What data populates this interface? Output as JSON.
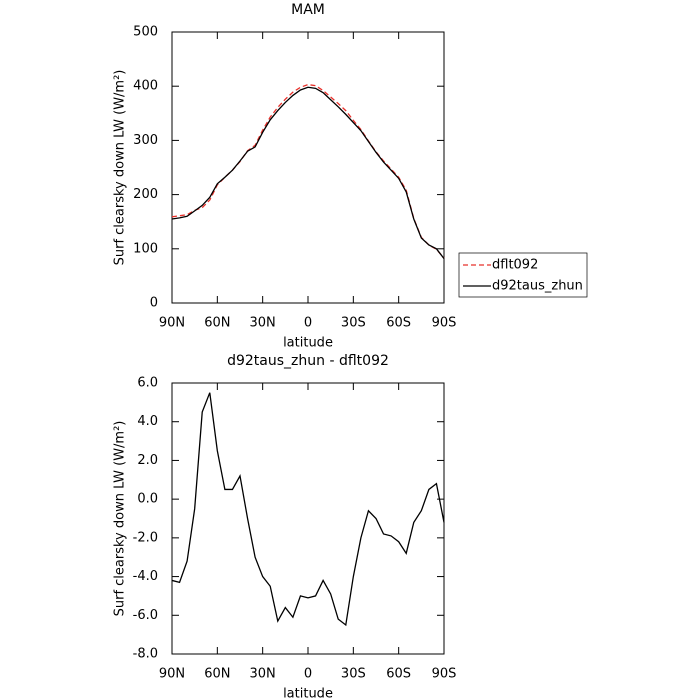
{
  "chart_data": [
    {
      "type": "line",
      "title": "MAM",
      "x_label": "latitude",
      "y_label": "Surf clearsky down LW (W/m²)",
      "x": [
        90,
        85,
        80,
        75,
        70,
        65,
        60,
        55,
        50,
        45,
        40,
        35,
        30,
        25,
        20,
        15,
        10,
        5,
        0,
        -5,
        -10,
        -15,
        -20,
        -25,
        -30,
        -35,
        -40,
        -45,
        -50,
        -55,
        -60,
        -65,
        -70,
        -75,
        -80,
        -85,
        -90
      ],
      "xlim": [
        90,
        -90
      ],
      "xticks": [
        {
          "value": 90,
          "label": "90N"
        },
        {
          "value": 60,
          "label": "60N"
        },
        {
          "value": 30,
          "label": "30N"
        },
        0,
        {
          "value": -30,
          "label": "30S"
        },
        {
          "value": -60,
          "label": "60S"
        },
        {
          "value": -90,
          "label": "90S"
        }
      ],
      "ylim": [
        0,
        500
      ],
      "yticks": [
        0,
        100,
        200,
        300,
        400,
        500
      ],
      "legend": "right",
      "series": [
        {
          "name": "dflt092",
          "color": "#e8302a",
          "dash": true,
          "values": [
            159,
            161,
            163,
            171,
            176,
            190,
            218,
            232,
            245,
            261,
            281,
            291,
            319,
            343,
            361,
            376,
            389,
            398,
            403,
            401,
            392,
            380,
            368,
            355,
            337,
            320,
            299,
            279,
            262,
            247,
            232,
            208,
            156,
            121,
            107,
            99,
            83
          ]
        },
        {
          "name": "d92taus_zhun",
          "color": "#000000",
          "dash": false,
          "values": [
            155,
            157,
            160,
            170,
            180,
            195,
            220,
            232,
            245,
            262,
            280,
            288,
            315,
            338,
            355,
            370,
            383,
            393,
            398,
            396,
            388,
            375,
            362,
            348,
            333,
            318,
            298,
            278,
            260,
            245,
            230,
            205,
            155,
            120,
            107,
            100,
            82
          ]
        }
      ]
    },
    {
      "type": "line",
      "title": "d92taus_zhun - dflt092",
      "x_label": "latitude",
      "y_label": "Surf clearsky down LW (W/m²)",
      "x": [
        90,
        85,
        80,
        75,
        70,
        65,
        60,
        55,
        50,
        45,
        40,
        35,
        30,
        25,
        20,
        15,
        10,
        5,
        0,
        -5,
        -10,
        -15,
        -20,
        -25,
        -30,
        -35,
        -40,
        -45,
        -50,
        -55,
        -60,
        -65,
        -70,
        -75,
        -80,
        -85,
        -90
      ],
      "xlim": [
        90,
        -90
      ],
      "xticks": [
        {
          "value": 90,
          "label": "90N"
        },
        {
          "value": 60,
          "label": "60N"
        },
        {
          "value": 30,
          "label": "30N"
        },
        0,
        {
          "value": -30,
          "label": "30S"
        },
        {
          "value": -60,
          "label": "60S"
        },
        {
          "value": -90,
          "label": "90S"
        }
      ],
      "ylim": [
        -8,
        6
      ],
      "yticks": [
        {
          "value": -8,
          "label": "-8.0"
        },
        {
          "value": -6,
          "label": "-6.0"
        },
        {
          "value": -4,
          "label": "-4.0"
        },
        {
          "value": -2,
          "label": "-2.0"
        },
        {
          "value": 0,
          "label": "0.0"
        },
        {
          "value": 2,
          "label": "2.0"
        },
        {
          "value": 4,
          "label": "4.0"
        },
        {
          "value": 6,
          "label": "6.0"
        }
      ],
      "series": [
        {
          "color": "#000000",
          "dash": false,
          "values": [
            -4.2,
            -4.3,
            -3.2,
            -0.5,
            4.5,
            5.5,
            2.5,
            0.5,
            0.5,
            1.2,
            -1.0,
            -3.0,
            -4.0,
            -4.5,
            -6.3,
            -5.6,
            -6.1,
            -5.0,
            -5.1,
            -5.0,
            -4.2,
            -4.9,
            -6.2,
            -6.5,
            -4.0,
            -2.0,
            -0.6,
            -1.0,
            -1.8,
            -1.9,
            -2.2,
            -2.8,
            -1.2,
            -0.6,
            0.5,
            0.8,
            -1.2
          ]
        }
      ]
    }
  ]
}
